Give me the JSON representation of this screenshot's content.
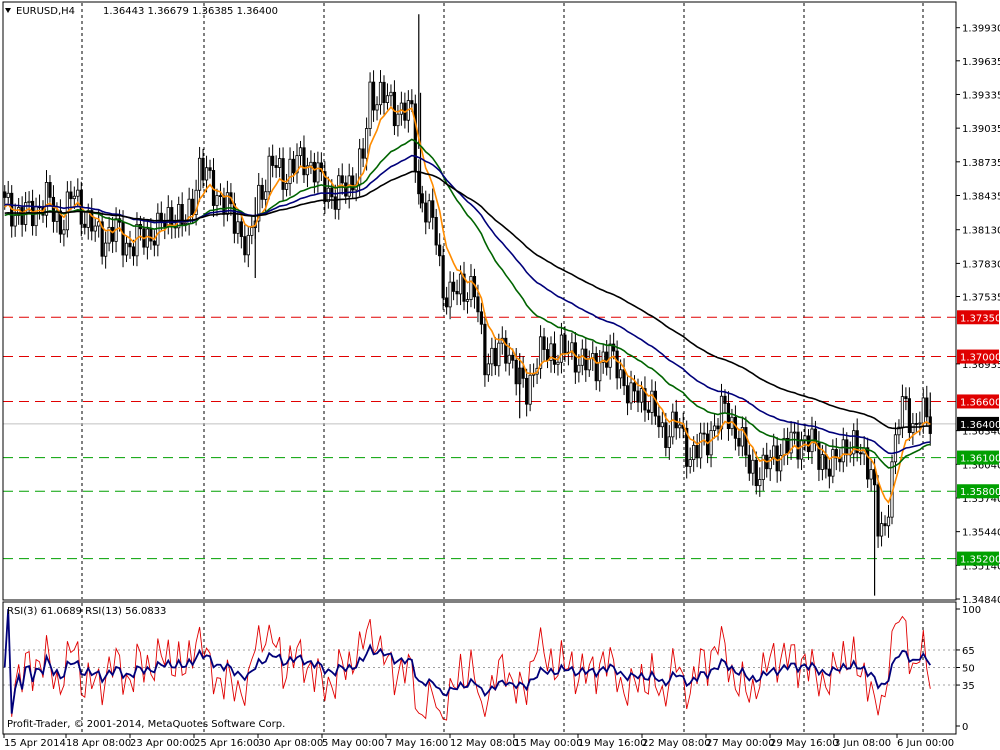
{
  "window": {
    "symbol": "EURUSD,H4",
    "ohlc": "1.36443 1.36679 1.36385 1.36400",
    "copyright": "Profit-Trader, © 2001-2014, MetaQuotes Software Corp."
  },
  "rsi": {
    "label": "RSI(3) 61.0689  RSI(13) 56.0833",
    "ticks": [
      "100",
      "65",
      "50",
      "35",
      "0"
    ],
    "levels": [
      65,
      50,
      35
    ]
  },
  "chart_data": {
    "type": "candlestick",
    "price_axis_ticks": [
      "1.39930",
      "1.39635",
      "1.39335",
      "1.39035",
      "1.38735",
      "1.38435",
      "1.38130",
      "1.37830",
      "1.37535",
      "1.36935",
      "1.36340",
      "1.36040",
      "1.35740",
      "1.35440",
      "1.35140",
      "1.34840"
    ],
    "price_range": [
      1.3484,
      1.4015
    ],
    "time_labels": [
      "15 Apr 2014",
      "18 Apr 08:00",
      "23 Apr 00:00",
      "25 Apr 16:00",
      "30 Apr 08:00",
      "5 May 00:00",
      "7 May 16:00",
      "12 May 08:00",
      "15 May 00:00",
      "19 May 16:00",
      "22 May 08:00",
      "27 May 00:00",
      "29 May 16:00",
      "3 Jun 08:00",
      "6 Jun 00:00"
    ],
    "levels": [
      {
        "price": 1.3735,
        "label": "1.37350",
        "color": "#e00000"
      },
      {
        "price": 1.37,
        "label": "1.37000",
        "color": "#e00000"
      },
      {
        "price": 1.366,
        "label": "1.36600",
        "color": "#e00000"
      },
      {
        "price": 1.361,
        "label": "1.36100",
        "color": "#00a000"
      },
      {
        "price": 1.358,
        "label": "1.35800",
        "color": "#00a000"
      },
      {
        "price": 1.352,
        "label": "1.35200",
        "color": "#00a000"
      }
    ],
    "current_price": {
      "price": 1.364,
      "label": "1.36400"
    },
    "close_path": [
      [
        0,
        1.3835
      ],
      [
        6,
        1.3825
      ],
      [
        12,
        1.384
      ],
      [
        16,
        1.3818
      ],
      [
        20,
        1.3845
      ],
      [
        24,
        1.3818
      ],
      [
        28,
        1.3805
      ],
      [
        32,
        1.3812
      ],
      [
        36,
        1.3798
      ],
      [
        40,
        1.3808
      ],
      [
        44,
        1.3812
      ],
      [
        48,
        1.3828
      ],
      [
        52,
        1.3816
      ],
      [
        56,
        1.3868
      ],
      [
        60,
        1.385
      ],
      [
        64,
        1.3832
      ],
      [
        68,
        1.3812
      ],
      [
        70,
        1.3792
      ],
      [
        73,
        1.3845
      ],
      [
        77,
        1.387
      ],
      [
        81,
        1.3862
      ],
      [
        86,
        1.3878
      ],
      [
        91,
        1.3855
      ],
      [
        95,
        1.3842
      ],
      [
        100,
        1.3858
      ],
      [
        103,
        1.3875
      ],
      [
        105,
        1.3935
      ],
      [
        108,
        1.3932
      ],
      [
        112,
        1.3922
      ],
      [
        115,
        1.3918
      ],
      [
        117,
        1.3915
      ],
      [
        119,
        1.3845
      ],
      [
        121,
        1.383
      ],
      [
        124,
        1.381
      ],
      [
        126,
        1.376
      ],
      [
        128,
        1.375
      ],
      [
        131,
        1.3765
      ],
      [
        135,
        1.3755
      ],
      [
        138,
        1.37
      ],
      [
        141,
        1.3698
      ],
      [
        144,
        1.371
      ],
      [
        146,
        1.3695
      ],
      [
        148,
        1.3675
      ],
      [
        150,
        1.367
      ],
      [
        153,
        1.37
      ],
      [
        158,
        1.3705
      ],
      [
        164,
        1.3702
      ],
      [
        168,
        1.369
      ],
      [
        172,
        1.37
      ],
      [
        176,
        1.3695
      ],
      [
        180,
        1.366
      ],
      [
        182,
        1.3668
      ],
      [
        185,
        1.366
      ],
      [
        189,
        1.3632
      ],
      [
        193,
        1.364
      ],
      [
        197,
        1.3612
      ],
      [
        201,
        1.3622
      ],
      [
        205,
        1.3645
      ],
      [
        207,
        1.3652
      ],
      [
        211,
        1.363
      ],
      [
        214,
        1.36
      ],
      [
        218,
        1.3598
      ],
      [
        222,
        1.3615
      ],
      [
        226,
        1.3622
      ],
      [
        230,
        1.3628
      ],
      [
        234,
        1.3612
      ],
      [
        238,
        1.36
      ],
      [
        242,
        1.3625
      ],
      [
        246,
        1.3612
      ],
      [
        249,
        1.3605
      ],
      [
        251,
        1.3545
      ],
      [
        253,
        1.354
      ],
      [
        255,
        1.3608
      ],
      [
        257,
        1.3645
      ],
      [
        259,
        1.3655
      ],
      [
        261,
        1.3638
      ],
      [
        263,
        1.365
      ],
      [
        265,
        1.3642
      ],
      [
        266,
        1.364
      ]
    ],
    "wick_events": [
      {
        "bar": 119,
        "high": 1.4005,
        "low": 1.3885
      },
      {
        "bar": 119.5,
        "high": 1.3935,
        "low": 1.3832
      },
      {
        "bar": 72,
        "high": 1.3842,
        "low": 1.377
      },
      {
        "bar": 148,
        "high": 1.3703,
        "low": 1.3645
      },
      {
        "bar": 250,
        "high": 1.358,
        "low": 1.3487
      },
      {
        "bar": 266,
        "high": 1.3668,
        "low": 1.3638
      }
    ],
    "series": [
      {
        "name": "",
        "color": "#ff8c00",
        "period": 8
      },
      {
        "name": "",
        "color": "#006400",
        "period": 34
      },
      {
        "name": "",
        "color": "#00007a",
        "period": 55
      },
      {
        "name": "",
        "color": "#000000",
        "period": 89
      }
    ]
  }
}
